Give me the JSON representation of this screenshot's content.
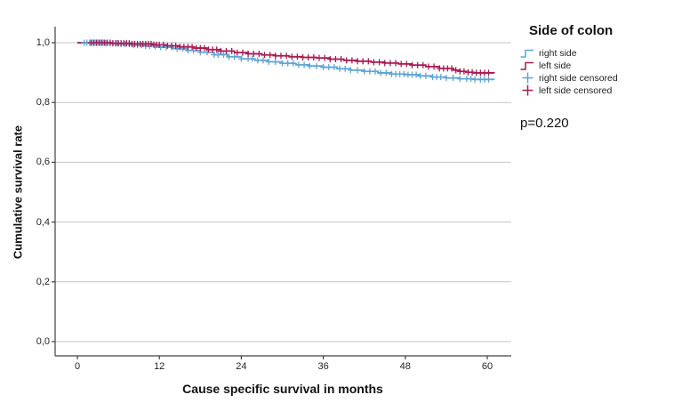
{
  "axes": {
    "x_label": "Cause specific survival in months",
    "y_label": "Cumulative survival rate"
  },
  "legend": {
    "title": "Side of colon",
    "items": [
      {
        "label": "right side",
        "symbol": "step-line",
        "color": "#5EA5D7"
      },
      {
        "label": "left side",
        "symbol": "step-line",
        "color": "#A81A52"
      },
      {
        "label": "right side censored",
        "symbol": "plus",
        "color": "#5EA5D7"
      },
      {
        "label": "left side censored",
        "symbol": "plus",
        "color": "#A81A52"
      }
    ],
    "p_value": "p=0.220"
  },
  "chart_data": {
    "type": "line",
    "subtype": "kaplan-meier-step",
    "title": "",
    "xlabel": "Cause specific survival in months",
    "ylabel": "Cumulative survival rate",
    "xlim": [
      0,
      63
    ],
    "ylim": [
      0.0,
      1.0
    ],
    "grid": "horizontal",
    "legend_position": "right",
    "annotation": "p=0.220",
    "colors": {
      "grid": "#C6C6C6",
      "axis": "#404040",
      "text": "#262626"
    },
    "x_ticks": [
      {
        "label": "0",
        "value": 0
      },
      {
        "label": "12",
        "value": 12
      },
      {
        "label": "24",
        "value": 24
      },
      {
        "label": "36",
        "value": 36
      },
      {
        "label": "48",
        "value": 48
      },
      {
        "label": "60",
        "value": 60
      }
    ],
    "y_ticks": [
      {
        "label": "1,0",
        "value": 1.0
      },
      {
        "label": "0,8",
        "value": 0.8
      },
      {
        "label": "0,6",
        "value": 0.6
      },
      {
        "label": "0,4",
        "value": 0.4
      },
      {
        "label": "0,2",
        "value": 0.2
      },
      {
        "label": "0,0",
        "value": 0.0
      }
    ],
    "series": [
      {
        "name": "right side",
        "color": "#5EA5D7",
        "steps": [
          [
            0,
            1.0
          ],
          [
            4,
            0.998
          ],
          [
            6,
            0.995
          ],
          [
            8,
            0.992
          ],
          [
            10,
            0.989
          ],
          [
            12,
            0.985
          ],
          [
            14,
            0.98
          ],
          [
            16,
            0.974
          ],
          [
            18,
            0.968
          ],
          [
            20,
            0.96
          ],
          [
            22,
            0.953
          ],
          [
            24,
            0.946
          ],
          [
            26,
            0.941
          ],
          [
            28,
            0.936
          ],
          [
            30,
            0.931
          ],
          [
            32,
            0.926
          ],
          [
            34,
            0.922
          ],
          [
            36,
            0.918
          ],
          [
            38,
            0.913
          ],
          [
            40,
            0.908
          ],
          [
            42,
            0.904
          ],
          [
            44,
            0.899
          ],
          [
            46,
            0.895
          ],
          [
            48,
            0.893
          ],
          [
            50,
            0.889
          ],
          [
            52,
            0.885
          ],
          [
            54,
            0.882
          ],
          [
            56,
            0.879
          ],
          [
            58,
            0.877
          ],
          [
            61,
            0.876
          ]
        ],
        "censored_times": [
          1,
          1.4,
          1.8,
          2.2,
          2.6,
          3,
          3.4,
          3.8,
          4.2,
          4.8,
          5.2,
          5.8,
          6.4,
          7,
          7.6,
          8.2,
          8.8,
          9.4,
          10,
          10.6,
          11.4,
          12.2,
          13,
          13.8,
          14.6,
          15.4,
          16.2,
          17,
          18,
          19,
          20,
          20.6,
          21.4,
          22.2,
          23,
          24,
          25,
          25.6,
          26.4,
          27.2,
          28,
          29,
          30,
          30.8,
          31.6,
          32.4,
          33.2,
          34,
          35,
          36,
          36.8,
          37.6,
          38.4,
          39.2,
          40,
          41,
          42,
          42.8,
          43.6,
          44.4,
          45.2,
          46,
          46.6,
          47.2,
          47.8,
          48.4,
          49,
          49.6,
          50.2,
          51,
          52,
          52.6,
          53.2,
          54,
          55,
          56,
          57,
          57.6,
          58.2,
          59,
          59.6,
          60.2
        ]
      },
      {
        "name": "left side",
        "color": "#A81A52",
        "steps": [
          [
            0,
            1.0
          ],
          [
            5,
            0.998
          ],
          [
            8,
            0.996
          ],
          [
            11,
            0.993
          ],
          [
            13,
            0.99
          ],
          [
            15,
            0.986
          ],
          [
            17,
            0.982
          ],
          [
            19,
            0.977
          ],
          [
            21,
            0.972
          ],
          [
            23,
            0.967
          ],
          [
            25,
            0.963
          ],
          [
            27,
            0.959
          ],
          [
            29,
            0.956
          ],
          [
            31,
            0.953
          ],
          [
            33,
            0.951
          ],
          [
            35,
            0.949
          ],
          [
            37,
            0.945
          ],
          [
            39,
            0.941
          ],
          [
            41,
            0.938
          ],
          [
            43,
            0.935
          ],
          [
            45,
            0.932
          ],
          [
            47,
            0.929
          ],
          [
            49,
            0.925
          ],
          [
            51,
            0.92
          ],
          [
            53,
            0.914
          ],
          [
            55,
            0.908
          ],
          [
            56,
            0.904
          ],
          [
            57,
            0.901
          ],
          [
            58,
            0.899
          ],
          [
            61,
            0.898
          ]
        ],
        "censored_times": [
          2,
          2.4,
          2.8,
          3.2,
          3.6,
          4,
          4.4,
          4.8,
          5.2,
          5.6,
          6,
          6.4,
          6.8,
          7.2,
          7.6,
          8,
          8.4,
          8.8,
          9.2,
          9.6,
          10,
          10.4,
          10.8,
          11.2,
          11.6,
          12,
          12.6,
          13.2,
          13.8,
          14.4,
          15,
          15.6,
          16.2,
          16.8,
          17.4,
          18,
          18.6,
          19.2,
          19.8,
          20.4,
          21,
          21.8,
          22.6,
          23.4,
          24.2,
          25,
          25.8,
          26.6,
          27.4,
          28.2,
          29,
          29.8,
          30.6,
          31.4,
          32.2,
          33,
          33.8,
          34.6,
          35.4,
          36.2,
          37,
          37.8,
          38.6,
          39.4,
          40.2,
          41,
          41.8,
          42.6,
          43.4,
          44.2,
          45,
          45.8,
          46.6,
          47.4,
          48.2,
          49,
          49.8,
          50.6,
          51.4,
          52.2,
          53,
          53.6,
          54.2,
          54.8,
          55.4,
          56,
          56.6,
          57.2,
          57.8,
          58.4,
          59,
          59.6,
          60.2
        ]
      }
    ]
  }
}
